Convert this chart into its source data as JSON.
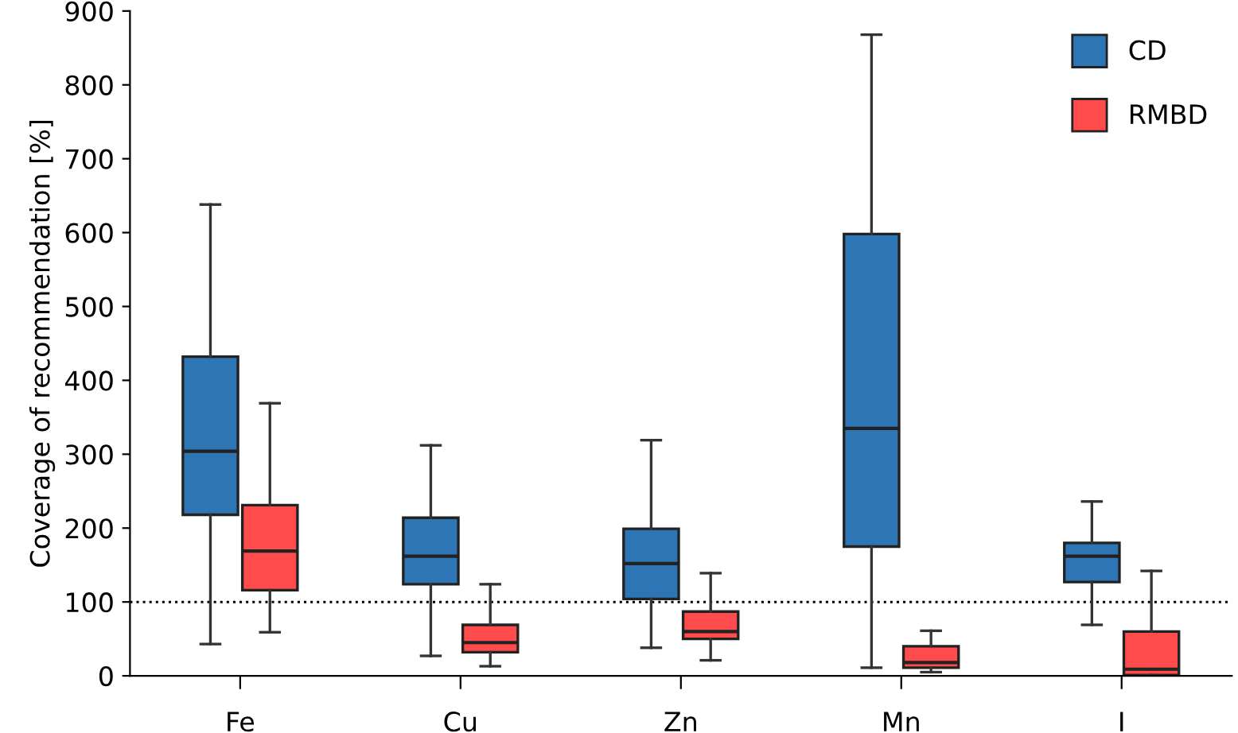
{
  "chart_data": {
    "type": "box",
    "ylabel": "Coverage of recommendation [%]",
    "categories": [
      "Fe",
      "Cu",
      "Zn",
      "Mn",
      "I"
    ],
    "ylim": [
      0,
      900
    ],
    "yticks": [
      0,
      100,
      200,
      300,
      400,
      500,
      600,
      700,
      800,
      900
    ],
    "grid": false,
    "legend": "top right",
    "ref_lines": [
      {
        "axis": "y",
        "value": 100,
        "line_style": "dotted",
        "color": "#000000"
      }
    ],
    "series": [
      {
        "name": "CD",
        "color": "#2e75b6",
        "boxes": [
          {
            "low": 43,
            "q1": 218,
            "median": 304,
            "q3": 432,
            "high": 638
          },
          {
            "low": 27,
            "q1": 124,
            "median": 162,
            "q3": 214,
            "high": 312
          },
          {
            "low": 38,
            "q1": 104,
            "median": 152,
            "q3": 199,
            "high": 319
          },
          {
            "low": 11,
            "q1": 175,
            "median": 335,
            "q3": 598,
            "high": 868
          },
          {
            "low": 69,
            "q1": 127,
            "median": 162,
            "q3": 180,
            "high": 236
          }
        ]
      },
      {
        "name": "RMBD",
        "color": "#ff4b4b",
        "boxes": [
          {
            "low": 59,
            "q1": 116,
            "median": 169,
            "q3": 231,
            "high": 369
          },
          {
            "low": 13,
            "q1": 32,
            "median": 45,
            "q3": 69,
            "high": 124
          },
          {
            "low": 21,
            "q1": 50,
            "median": 60,
            "q3": 87,
            "high": 139
          },
          {
            "low": 5,
            "q1": 11,
            "median": 18,
            "q3": 40,
            "high": 61
          },
          {
            "low": 0,
            "q1": 1,
            "median": 9,
            "q3": 60,
            "high": 142
          }
        ]
      }
    ]
  }
}
